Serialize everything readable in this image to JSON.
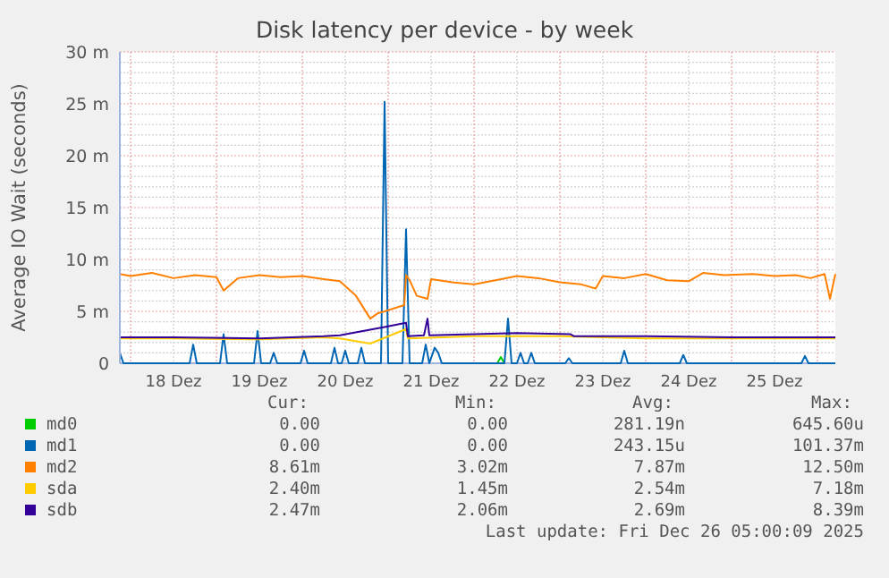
{
  "chart_data": {
    "type": "line",
    "title": "Disk latency per device - by week",
    "ylabel": "Average IO Wait (seconds)",
    "xlim": [
      "2025-12-17T21:00",
      "2025-12-26T05:00"
    ],
    "xticks": [
      {
        "value": "2025-12-18T00:00",
        "label": null
      },
      {
        "value": "2025-12-18T12:00",
        "label": "18 Dez"
      },
      {
        "value": "2025-12-19T00:00",
        "label": null
      },
      {
        "value": "2025-12-19T12:00",
        "label": "19 Dez"
      },
      {
        "value": "2025-12-20T00:00",
        "label": null
      },
      {
        "value": "2025-12-20T12:00",
        "label": "20 Dez"
      },
      {
        "value": "2025-12-21T00:00",
        "label": null
      },
      {
        "value": "2025-12-21T12:00",
        "label": "21 Dez"
      },
      {
        "value": "2025-12-22T00:00",
        "label": null
      },
      {
        "value": "2025-12-22T12:00",
        "label": "22 Dez"
      },
      {
        "value": "2025-12-23T00:00",
        "label": null
      },
      {
        "value": "2025-12-23T12:00",
        "label": "23 Dez"
      },
      {
        "value": "2025-12-24T00:00",
        "label": null
      },
      {
        "value": "2025-12-24T12:00",
        "label": "24 Dez"
      },
      {
        "value": "2025-12-25T00:00",
        "label": null
      },
      {
        "value": "2025-12-25T12:00",
        "label": "25 Dez"
      },
      {
        "value": "2025-12-26T00:00",
        "label": null
      }
    ],
    "ylim": [
      0,
      30
    ],
    "yticks": [
      0,
      {
        "value": 1,
        "label": null
      },
      {
        "value": 2,
        "label": null
      },
      {
        "value": 3,
        "label": null
      },
      {
        "value": 4,
        "label": null
      },
      {
        "value": 5,
        "label": "5 m"
      },
      {
        "value": 6,
        "label": null
      },
      {
        "value": 7,
        "label": null
      },
      {
        "value": 8,
        "label": null
      },
      {
        "value": 9,
        "label": null
      },
      {
        "value": 10,
        "label": "10 m"
      },
      {
        "value": 11,
        "label": null
      },
      {
        "value": 12,
        "label": null
      },
      {
        "value": 13,
        "label": null
      },
      {
        "value": 14,
        "label": null
      },
      {
        "value": 15,
        "label": "15 m"
      },
      {
        "value": 16,
        "label": null
      },
      {
        "value": 17,
        "label": null
      },
      {
        "value": 18,
        "label": null
      },
      {
        "value": 19,
        "label": null
      },
      {
        "value": 20,
        "label": "20 m"
      },
      {
        "value": 21,
        "label": null
      },
      {
        "value": 22,
        "label": null
      },
      {
        "value": 23,
        "label": null
      },
      {
        "value": 24,
        "label": null
      },
      {
        "value": 25,
        "label": "25 m"
      },
      {
        "value": 26,
        "label": null
      },
      {
        "value": 27,
        "label": null
      },
      {
        "value": 28,
        "label": null
      },
      {
        "value": 29,
        "label": null
      },
      {
        "value": 30,
        "label": "30 m"
      }
    ],
    "grid": true,
    "legend": "bottom",
    "marker": "none",
    "line_style": "solid",
    "series": [
      {
        "name": "md0",
        "color": "#00cc00",
        "x": [
          "2025-12-22T06:30",
          "2025-12-22T07:30",
          "2025-12-22T08:30"
        ],
        "values": [
          0,
          0.6,
          0
        ]
      },
      {
        "name": "md1",
        "color": "#0066b3",
        "x": [
          "2025-12-17T21:00",
          "2025-12-17T22:00",
          "2025-12-18T16:30",
          "2025-12-18T17:30",
          "2025-12-18T18:30",
          "2025-12-19T01:00",
          "2025-12-19T02:00",
          "2025-12-19T03:00",
          "2025-12-19T10:30",
          "2025-12-19T11:30",
          "2025-12-19T12:30",
          "2025-12-19T15:00",
          "2025-12-19T16:00",
          "2025-12-19T17:00",
          "2025-12-19T23:30",
          "2025-12-20T00:30",
          "2025-12-20T01:30",
          "2025-12-20T08:00",
          "2025-12-20T09:00",
          "2025-12-20T10:00",
          "2025-12-20T11:00",
          "2025-12-20T12:00",
          "2025-12-20T13:00",
          "2025-12-20T15:30",
          "2025-12-20T16:30",
          "2025-12-20T17:30",
          "2025-12-20T22:00",
          "2025-12-20T23:00",
          "2025-12-21T00:00",
          "2025-12-21T04:00",
          "2025-12-21T05:00",
          "2025-12-21T06:00",
          "2025-12-21T09:30",
          "2025-12-21T10:30",
          "2025-12-21T11:30",
          "2025-12-21T13:00",
          "2025-12-21T14:00",
          "2025-12-21T15:00",
          "2025-12-22T08:30",
          "2025-12-22T09:30",
          "2025-12-22T10:30",
          "2025-12-22T12:00",
          "2025-12-22T13:00",
          "2025-12-22T14:00",
          "2025-12-22T15:00",
          "2025-12-22T16:00",
          "2025-12-22T17:00",
          "2025-12-23T01:30",
          "2025-12-23T02:30",
          "2025-12-23T03:30",
          "2025-12-23T17:00",
          "2025-12-23T18:00",
          "2025-12-23T19:00",
          "2025-12-24T09:30",
          "2025-12-24T10:30",
          "2025-12-24T11:30",
          "2025-12-25T19:30",
          "2025-12-25T20:30",
          "2025-12-25T21:30",
          "2025-12-26T05:00"
        ],
        "values": [
          1,
          0,
          0,
          1.8,
          0,
          0,
          2.8,
          0,
          0,
          3.1,
          0,
          0,
          1,
          0,
          0,
          1.2,
          0,
          0,
          1.5,
          0,
          0,
          1.2,
          0,
          0,
          1.5,
          0,
          0,
          25.2,
          0,
          0,
          12.9,
          0,
          0,
          1.8,
          0,
          1.5,
          1,
          0,
          0,
          4.3,
          0,
          0,
          1,
          0,
          0,
          1,
          0,
          0,
          0.5,
          0,
          0,
          1.2,
          0,
          0,
          0.8,
          0,
          0,
          0.7,
          0,
          0
        ]
      },
      {
        "name": "md2",
        "color": "#ff8000",
        "x": [
          "2025-12-17T21:00",
          "2025-12-18T00:00",
          "2025-12-18T06:00",
          "2025-12-18T12:00",
          "2025-12-18T18:00",
          "2025-12-19T00:00",
          "2025-12-19T02:00",
          "2025-12-19T06:00",
          "2025-12-19T12:00",
          "2025-12-19T18:00",
          "2025-12-20T00:00",
          "2025-12-20T06:00",
          "2025-12-20T10:30",
          "2025-12-20T15:00",
          "2025-12-20T19:00",
          "2025-12-20T21:00",
          "2025-12-20T23:00",
          "2025-12-21T04:30",
          "2025-12-21T05:00",
          "2025-12-21T06:00",
          "2025-12-21T08:00",
          "2025-12-21T11:00",
          "2025-12-21T12:00",
          "2025-12-21T18:00",
          "2025-12-22T00:00",
          "2025-12-22T06:00",
          "2025-12-22T12:00",
          "2025-12-22T18:00",
          "2025-12-23T00:00",
          "2025-12-23T06:00",
          "2025-12-23T10:00",
          "2025-12-23T12:00",
          "2025-12-23T18:00",
          "2025-12-24T00:00",
          "2025-12-24T06:00",
          "2025-12-24T12:00",
          "2025-12-24T16:00",
          "2025-12-24T22:00",
          "2025-12-25T06:00",
          "2025-12-25T12:00",
          "2025-12-25T18:00",
          "2025-12-25T22:00",
          "2025-12-26T02:00",
          "2025-12-26T03:30",
          "2025-12-26T05:00"
        ],
        "values": [
          8.6,
          8.4,
          8.7,
          8.2,
          8.5,
          8.3,
          7,
          8.2,
          8.5,
          8.3,
          8.4,
          8.1,
          7.9,
          6.5,
          4.3,
          4.8,
          5,
          5.6,
          8.5,
          8,
          6.5,
          6.2,
          8.1,
          7.8,
          7.6,
          8,
          8.4,
          8.2,
          7.8,
          7.6,
          7.2,
          8.4,
          8.2,
          8.6,
          8,
          7.9,
          8.7,
          8.5,
          8.6,
          8.4,
          8.5,
          8.2,
          8.6,
          6.2,
          8.6
        ]
      },
      {
        "name": "sda",
        "color": "#ffcc00",
        "x": [
          "2025-12-17T21:00",
          "2025-12-18T12:00",
          "2025-12-19T12:00",
          "2025-12-20T06:00",
          "2025-12-20T10:30",
          "2025-12-20T19:00",
          "2025-12-21T05:00",
          "2025-12-21T05:30",
          "2025-12-22T00:00",
          "2025-12-23T00:00",
          "2025-12-24T00:00",
          "2025-12-25T00:00",
          "2025-12-26T05:00"
        ],
        "values": [
          2.4,
          2.4,
          2.3,
          2.5,
          2.4,
          1.9,
          3.3,
          2.4,
          2.6,
          2.6,
          2.4,
          2.4,
          2.4
        ]
      },
      {
        "name": "sdb",
        "color": "#330099",
        "x": [
          "2025-12-17T21:00",
          "2025-12-18T12:00",
          "2025-12-19T12:00",
          "2025-12-20T06:00",
          "2025-12-20T10:30",
          "2025-12-20T23:00",
          "2025-12-21T05:00",
          "2025-12-21T05:30",
          "2025-12-21T10:00",
          "2025-12-21T11:00",
          "2025-12-21T11:30",
          "2025-12-22T00:00",
          "2025-12-22T12:00",
          "2025-12-23T03:00",
          "2025-12-23T04:00",
          "2025-12-24T00:00",
          "2025-12-25T00:00",
          "2025-12-26T05:00"
        ],
        "values": [
          2.5,
          2.5,
          2.4,
          2.6,
          2.7,
          3.5,
          3.9,
          2.6,
          2.7,
          4.3,
          2.7,
          2.8,
          2.9,
          2.8,
          2.6,
          2.6,
          2.5,
          2.5
        ]
      }
    ],
    "annotations": [
      "Cur:",
      "Min:",
      "Avg:",
      "Max:",
      "0.00",
      "0.00",
      "281.19n",
      "645.60u",
      "0.00",
      "0.00",
      "243.15u",
      "101.37m",
      "8.61m",
      "3.02m",
      "7.87m",
      "12.50m",
      "2.40m",
      "1.45m",
      "2.54m",
      "7.18m",
      "2.47m",
      "2.06m",
      "2.69m",
      "8.39m",
      "Last update: Fri Dec 26 05:00:09 2025"
    ]
  }
}
